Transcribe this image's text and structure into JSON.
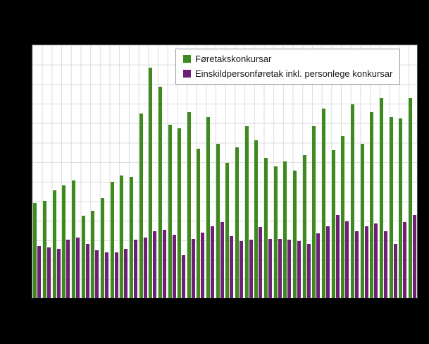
{
  "page": {
    "background_color": "#000000",
    "plot_background_color": "#ffffff",
    "grid_color": "#dcdcdc"
  },
  "legend": {
    "items": [
      {
        "label": "Føretakskonkursar",
        "color": "#3e8a1e",
        "swatch": "green-square-icon"
      },
      {
        "label": "Einskildpersonføretak inkl. personlege konkursar",
        "color": "#6e2077",
        "swatch": "purple-square-icon"
      }
    ]
  },
  "chart_data": {
    "type": "bar",
    "title": "",
    "xlabel": "",
    "ylabel": "",
    "x": [
      1,
      2,
      3,
      4,
      5,
      6,
      7,
      8,
      9,
      10,
      11,
      12,
      13,
      14,
      15,
      16,
      17,
      18,
      19,
      20,
      21,
      22,
      23,
      24,
      25,
      26,
      27,
      28,
      29,
      30,
      31,
      32,
      33,
      34,
      35,
      36,
      37,
      38,
      39,
      40
    ],
    "xticklabels_visible": false,
    "yticklabels_visible": false,
    "ylim": [
      0,
      1000
    ],
    "grid": true,
    "legend_position": "top-inside",
    "series": [
      {
        "name": "Føretakskonkursar",
        "color": "#3e8a1e",
        "values": [
          375,
          385,
          425,
          445,
          465,
          325,
          345,
          395,
          460,
          485,
          480,
          730,
          910,
          835,
          685,
          670,
          735,
          590,
          715,
          610,
          535,
          595,
          680,
          625,
          555,
          520,
          540,
          505,
          565,
          680,
          750,
          585,
          640,
          765,
          610,
          735,
          790,
          715,
          710,
          790
        ]
      },
      {
        "name": "Einskildpersonføretak inkl. personlege konkursar",
        "color": "#6e2077",
        "values": [
          205,
          200,
          195,
          230,
          240,
          215,
          190,
          180,
          180,
          195,
          230,
          240,
          265,
          270,
          250,
          170,
          235,
          260,
          285,
          300,
          245,
          225,
          230,
          280,
          235,
          235,
          230,
          225,
          215,
          255,
          285,
          330,
          305,
          265,
          285,
          295,
          265,
          215,
          300,
          330
        ]
      }
    ]
  }
}
